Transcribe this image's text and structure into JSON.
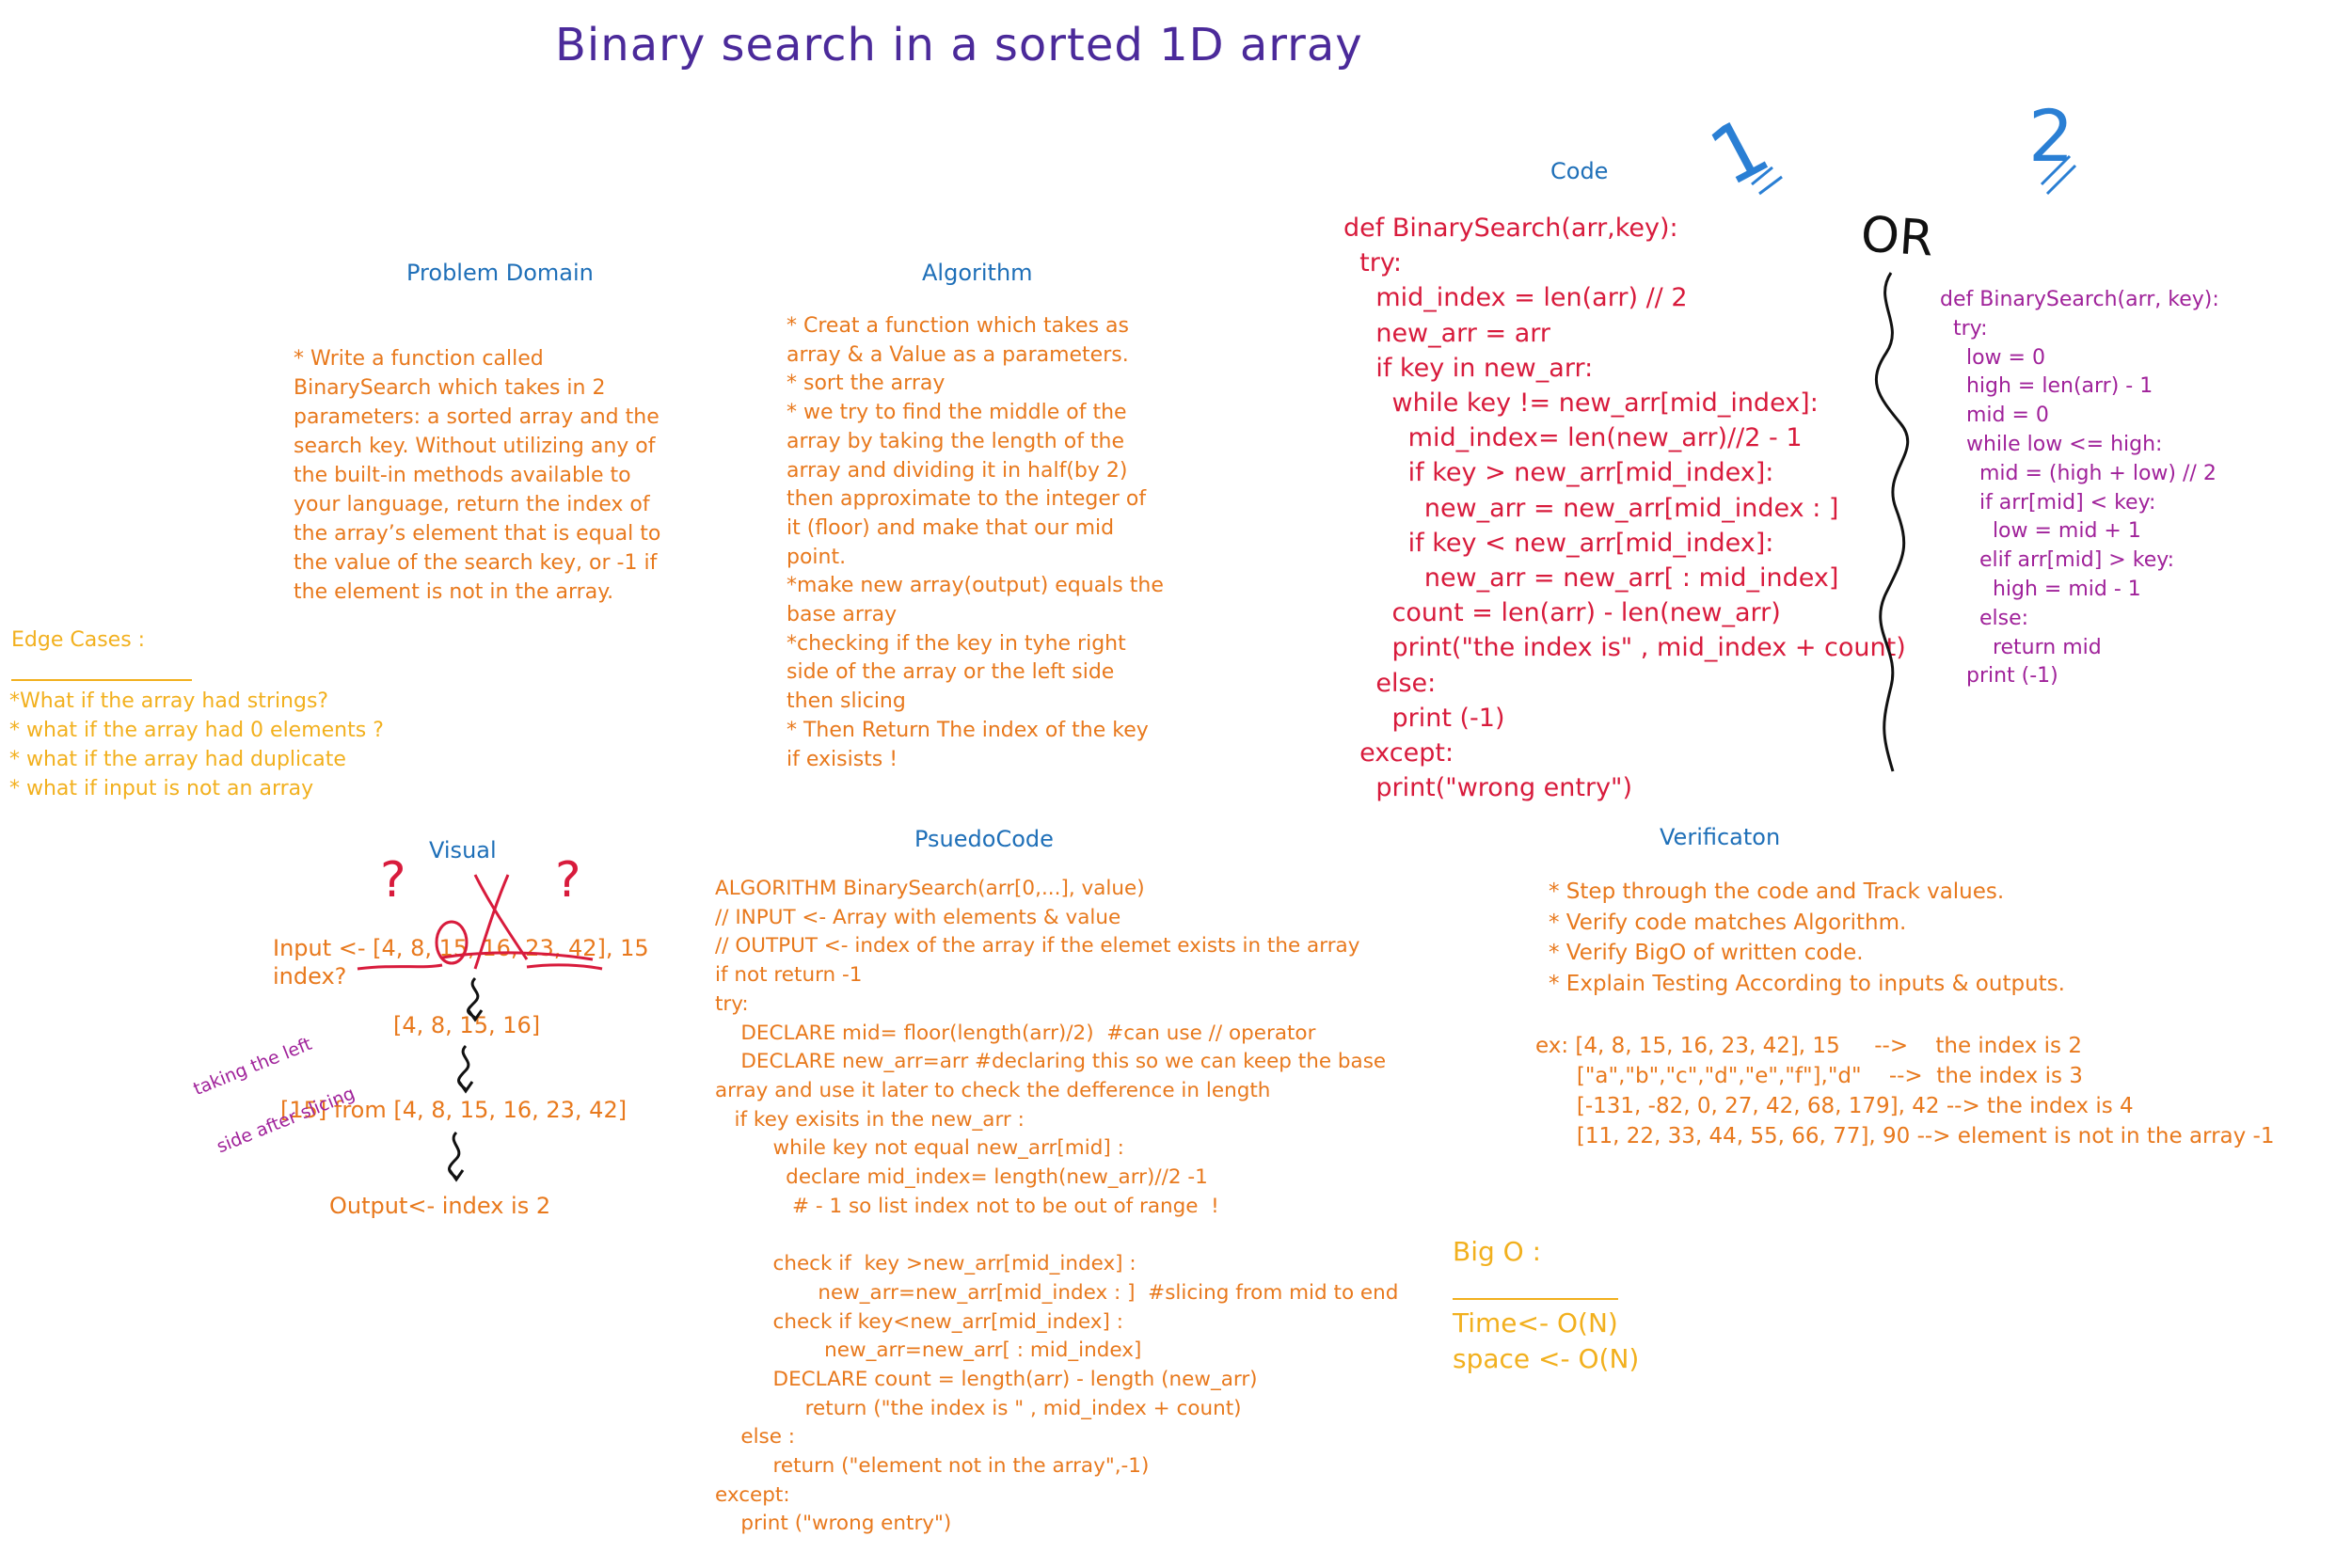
{
  "title": "Binary search in a sorted 1D array",
  "colors": {
    "title": "#4b2a9a",
    "heading": "#1e6fb8",
    "text_orange": "#e8791d",
    "text_yellow": "#f2b01e",
    "code_red": "#d81b3c",
    "code_purple": "#a0229a",
    "marks_blue": "#2a7fd4",
    "ink_black": "#111111"
  },
  "problem_domain": {
    "heading": "Problem Domain",
    "lines": [
      "* Write a function called",
      "BinarySearch which takes in 2",
      "parameters: a sorted array and the",
      "search key. Without utilizing any of",
      "the built-in methods available to",
      "your language, return the index of",
      "the array’s element that is equal to",
      "the value of the search key, or -1 if",
      "the element is not in the array."
    ]
  },
  "algorithm": {
    "heading": "Algorithm",
    "lines": [
      "* Creat a function which takes as",
      "array & a Value as a parameters.",
      "* sort the array",
      "* we try to find the middle of the",
      "array by taking the length of the",
      "array and dividing it in half(by 2)",
      "then approximate to the integer of",
      "it (floor) and make that our mid",
      "point.",
      "*make new array(output) equals the",
      "base array",
      "*checking if the key in tyhe right",
      "side of the array or the left side",
      "then slicing",
      "* Then Return The index of the key",
      "if exisists !"
    ]
  },
  "edge_cases": {
    "heading": "Edge Cases :",
    "lines": [
      "*What if the array had strings?",
      "* what if the array had 0 elements ?",
      "* what if the array had duplicate",
      "* what if input is not an array"
    ]
  },
  "code": {
    "heading": "Code",
    "lines": [
      "def BinarySearch(arr,key):",
      "  try:",
      "    mid_index = len(arr) // 2",
      "    new_arr = arr",
      "    if key in new_arr:",
      "      while key != new_arr[mid_index]:",
      "        mid_index= len(new_arr)//2 - 1",
      "        if key > new_arr[mid_index]:",
      "          new_arr = new_arr[mid_index : ]",
      "        if key < new_arr[mid_index]:",
      "          new_arr = new_arr[ : mid_index]",
      "      count = len(arr) - len(new_arr)",
      "      print(\"the index is\" , mid_index + count)",
      "    else:",
      "      print (-1)",
      "  except:",
      "    print(\"wrong entry\")"
    ]
  },
  "alt_code": {
    "or_label": "OR",
    "mark_one": "1",
    "mark_two": "2",
    "lines": [
      "def BinarySearch(arr, key):",
      "  try:",
      "    low = 0",
      "    high = len(arr) - 1",
      "    mid = 0",
      "    while low <= high:",
      "      mid = (high + low) // 2",
      "      if arr[mid] < key:",
      "        low = mid + 1",
      "      elif arr[mid] > key:",
      "        high = mid - 1",
      "      else:",
      "        return mid",
      "    print (-1)"
    ]
  },
  "visual": {
    "heading": "Visual",
    "input_line": "Input <- [4, 8, 15, 16, 23, 42], 15",
    "index_q": "index?",
    "step1": "[4, 8, 15, 16]",
    "step2": "[15] from [4, 8, 15, 16, 23, 42]",
    "output": "Output<- index is 2",
    "side_note_1": "taking the left",
    "side_note_2": "side after slicing",
    "q_mark": "?"
  },
  "pseudocode": {
    "heading": "PsuedoCode",
    "lines": [
      "ALGORITHM BinarySearch(arr[0,...], value)",
      "// INPUT <- Array with elements & value",
      "// OUTPUT <- index of the array if the elemet exists in the array",
      "if not return -1",
      "try:",
      "    DECLARE mid= floor(length(arr)/2)  #can use // operator",
      "    DECLARE new_arr=arr #declaring this so we can keep the base",
      "array and use it later to check the defference in length",
      "   if key exisits in the new_arr :",
      "         while key not equal new_arr[mid] :",
      "           declare mid_index= length(new_arr)//2 -1",
      "            # - 1 so list index not to be out of range  !",
      "",
      "         check if  key >new_arr[mid_index] :",
      "                new_arr=new_arr[mid_index : ]  #slicing from mid to end",
      "         check if key<new_arr[mid_index] :",
      "                 new_arr=new_arr[ : mid_index]",
      "         DECLARE count = length(arr) - length (new_arr)",
      "              return (\"the index is \" , mid_index + count)",
      "    else :",
      "         return (\"element not in the array\",-1)",
      "except:",
      "    print (\"wrong entry\")"
    ]
  },
  "verification": {
    "heading": "Verificaton",
    "lines": [
      "* Step through the code and Track values.",
      "* Verify code matches Algorithm.",
      "* Verify BigO of written code.",
      "* Explain Testing According to inputs & outputs."
    ],
    "examples": [
      "ex: [4, 8, 15, 16, 23, 42], 15     -->    the index is 2",
      "      [\"a\",\"b\",\"c\",\"d\",\"e\",\"f\"],\"d\"    -->  the index is 3",
      "      [-131, -82, 0, 27, 42, 68, 179], 42 --> the index is 4",
      "      [11, 22, 33, 44, 55, 66, 77], 90 --> element is not in the array -1"
    ]
  },
  "big_o": {
    "heading": "Big O :",
    "time": "Time<- O(N)",
    "space": "space <- O(N)"
  }
}
